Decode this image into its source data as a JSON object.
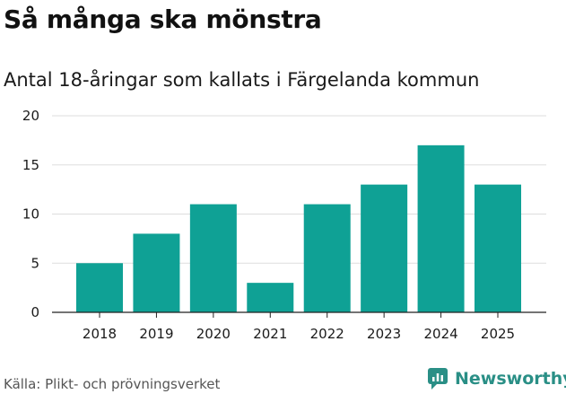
{
  "title": "Så många ska mönstra",
  "subtitle": "Antal 18-åringar som kallats i Färgelanda kommun",
  "source": "Källa: Plikt- och prövningsverket",
  "brand": {
    "name": "Newsworthy",
    "icon": "newsworthy-logo-icon"
  },
  "colors": {
    "bar": "#0fa195",
    "grid": "#dddddd",
    "axis": "#222222",
    "brand": "#2a8f86"
  },
  "chart_data": {
    "type": "bar",
    "title": "Så många ska mönstra",
    "subtitle": "Antal 18-åringar som kallats i Färgelanda kommun",
    "xlabel": "",
    "ylabel": "",
    "categories": [
      "2018",
      "2019",
      "2020",
      "2021",
      "2022",
      "2023",
      "2024",
      "2025"
    ],
    "values": [
      5,
      8,
      11,
      3,
      11,
      13,
      17,
      13
    ],
    "ylim": [
      0,
      20
    ],
    "yticks": [
      0,
      5,
      10,
      15,
      20
    ],
    "grid": true,
    "legend": "none"
  }
}
